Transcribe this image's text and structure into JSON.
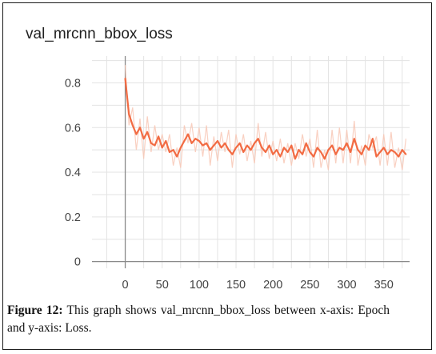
{
  "chart_data": {
    "type": "line",
    "title": "val_mrcnn_bbox_loss",
    "xlabel": "",
    "ylabel": "",
    "xlim": [
      -45,
      385
    ],
    "ylim": [
      -0.03,
      0.92
    ],
    "x_ticks": [
      0,
      50,
      100,
      150,
      200,
      250,
      300,
      350
    ],
    "y_ticks": [
      0,
      0.2,
      0.4,
      0.6,
      0.8
    ],
    "grid": true,
    "line_color": "#f26b43",
    "raw_line_color": "#f7c4b2",
    "series": [
      {
        "name": "",
        "x": [
          0,
          5,
          10,
          15,
          20,
          25,
          30,
          35,
          40,
          45,
          50,
          55,
          60,
          65,
          70,
          75,
          80,
          85,
          90,
          95,
          100,
          105,
          110,
          115,
          120,
          125,
          130,
          135,
          140,
          145,
          150,
          155,
          160,
          165,
          170,
          175,
          180,
          185,
          190,
          195,
          200,
          205,
          210,
          215,
          220,
          225,
          230,
          235,
          240,
          245,
          250,
          255,
          260,
          265,
          270,
          275,
          280,
          285,
          290,
          295,
          300,
          305,
          310,
          315,
          320,
          325,
          330,
          335,
          340,
          345,
          350,
          355,
          360,
          365,
          370,
          375,
          380
        ],
        "values": [
          0.82,
          0.66,
          0.61,
          0.57,
          0.6,
          0.55,
          0.58,
          0.53,
          0.52,
          0.56,
          0.51,
          0.54,
          0.49,
          0.5,
          0.47,
          0.51,
          0.54,
          0.57,
          0.53,
          0.55,
          0.54,
          0.52,
          0.53,
          0.5,
          0.52,
          0.54,
          0.51,
          0.53,
          0.5,
          0.48,
          0.51,
          0.53,
          0.49,
          0.52,
          0.5,
          0.53,
          0.55,
          0.51,
          0.49,
          0.52,
          0.48,
          0.5,
          0.47,
          0.51,
          0.49,
          0.52,
          0.46,
          0.5,
          0.48,
          0.53,
          0.49,
          0.47,
          0.51,
          0.49,
          0.46,
          0.5,
          0.52,
          0.48,
          0.51,
          0.5,
          0.53,
          0.49,
          0.55,
          0.5,
          0.48,
          0.52,
          0.5,
          0.55,
          0.47,
          0.49,
          0.51,
          0.48,
          0.5,
          0.49,
          0.47,
          0.5,
          0.48
        ]
      }
    ]
  },
  "caption": {
    "label": "Figure 12:",
    "text": " This graph shows val_mrcnn_bbox_loss between x-axis: Epoch and y-axis: Loss."
  }
}
